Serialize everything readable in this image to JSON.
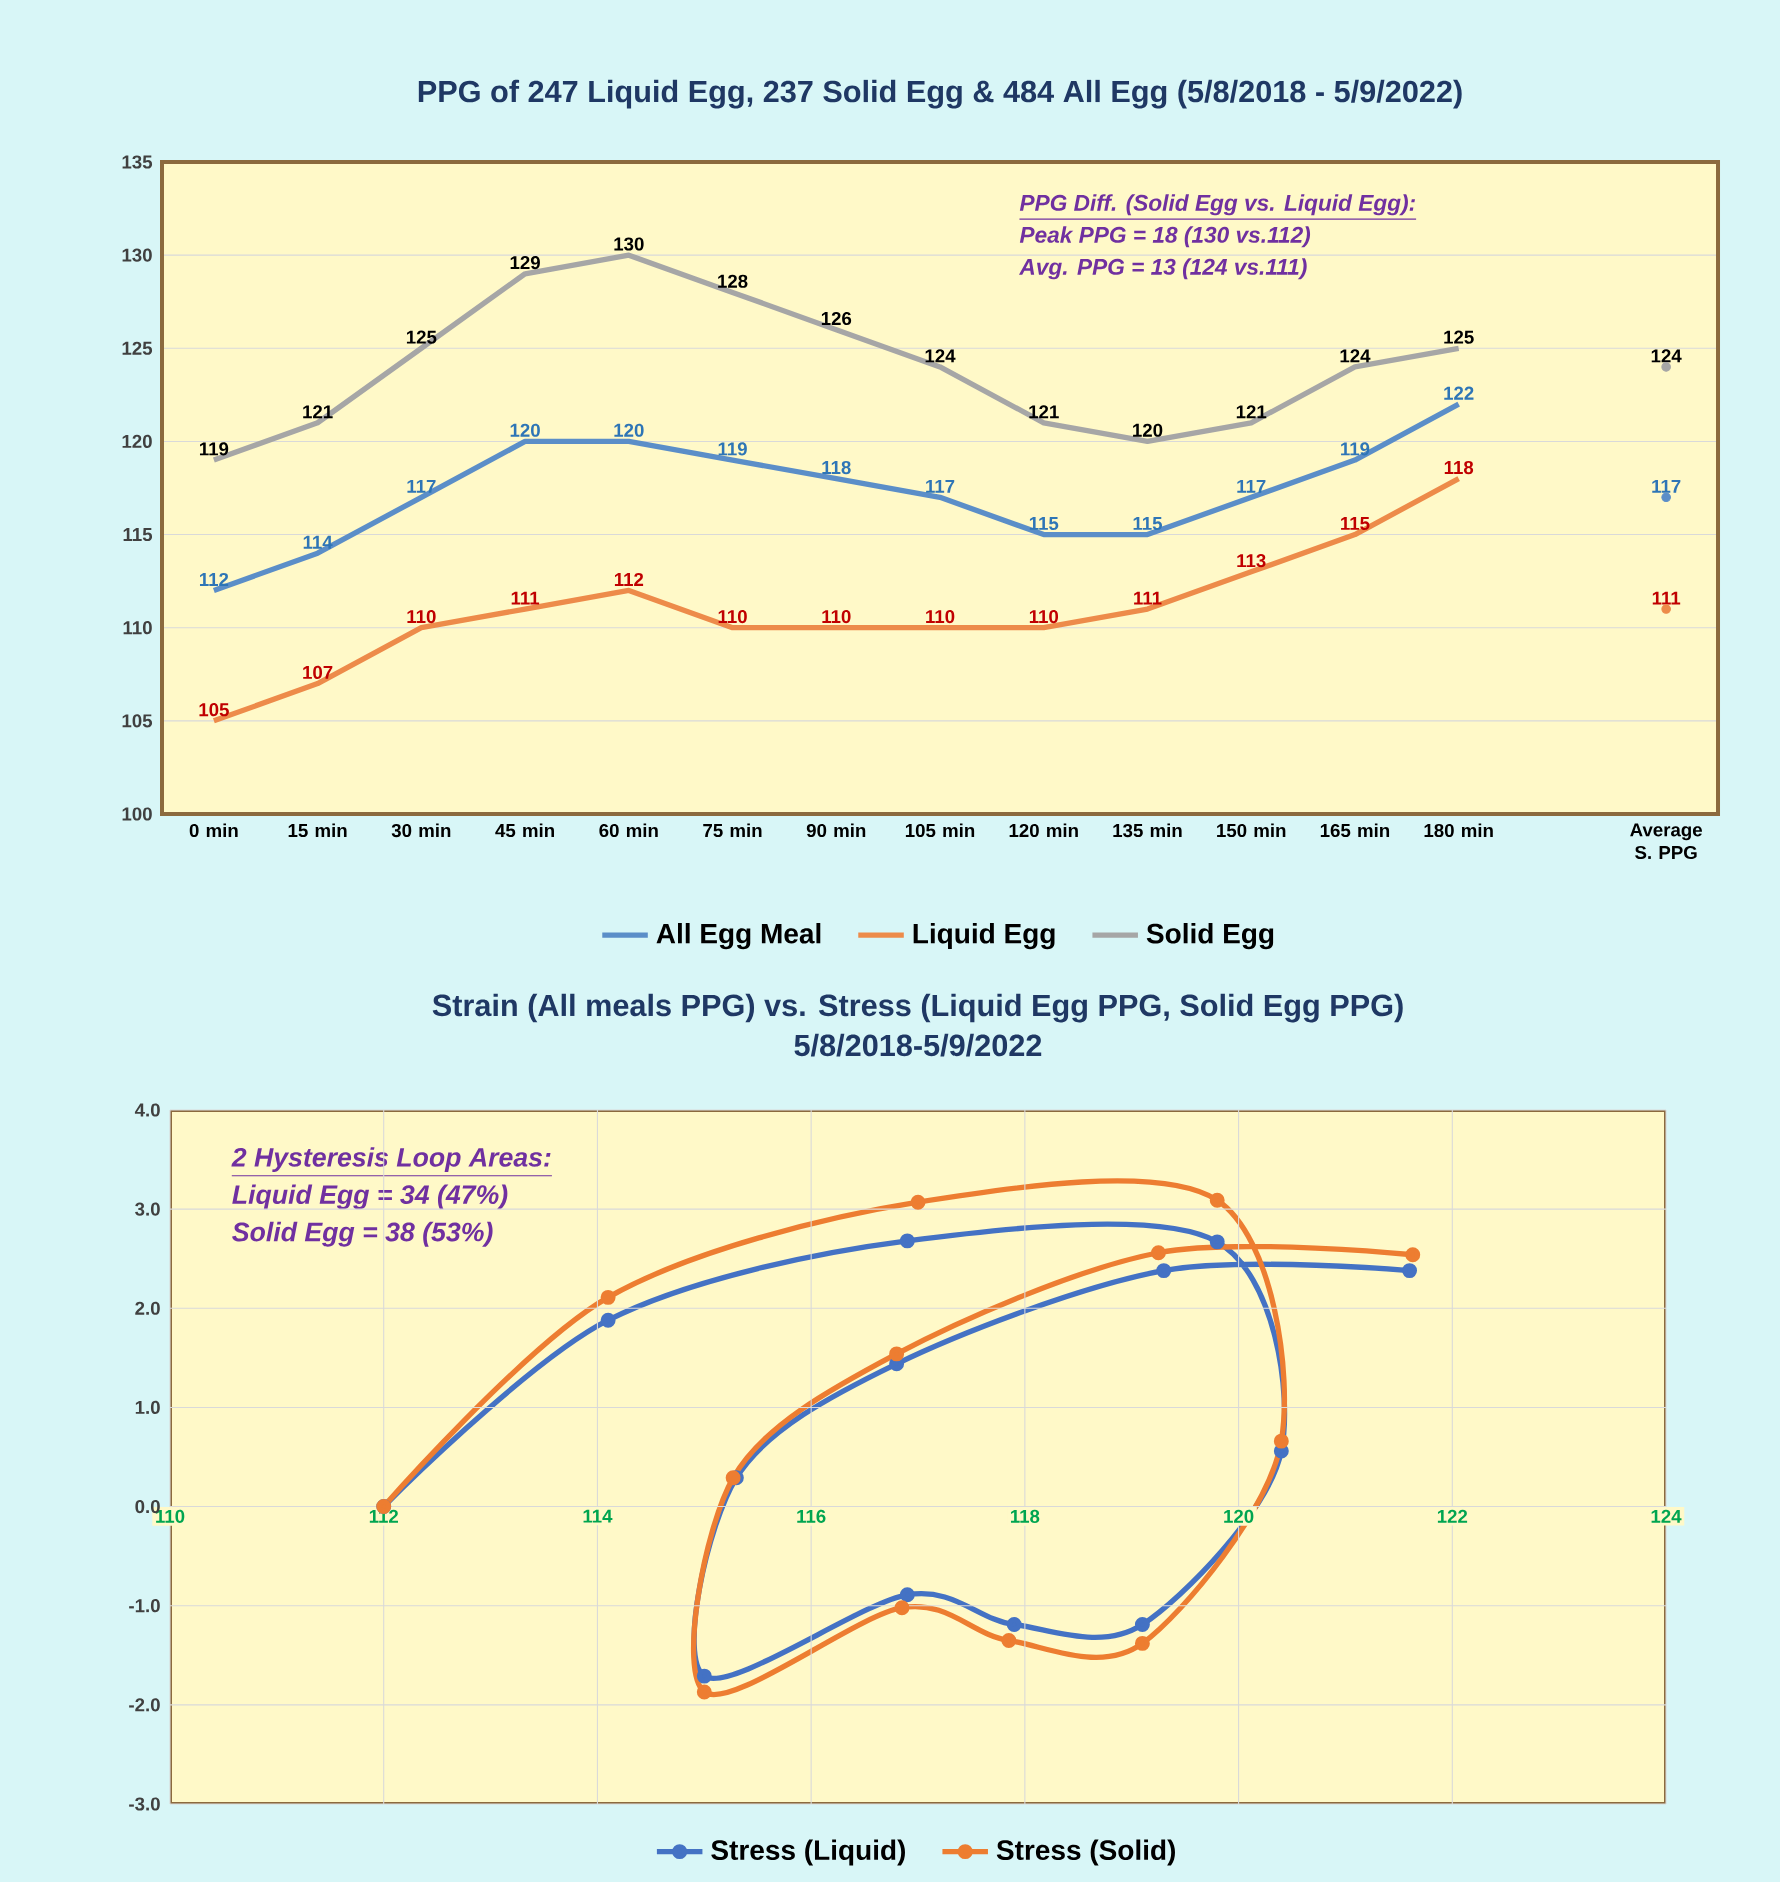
{
  "chart_data": [
    {
      "type": "line",
      "title": "PPG of 247 Liquid Egg,  237 Solid Egg & 484 All Egg (5/8/2018 - 5/9/2022)",
      "categories": [
        "0 min",
        "15 min",
        "30 min",
        "45 min",
        "60 min",
        "75 min",
        "90 min",
        "105 min",
        "120 min",
        "135 min",
        "150 min",
        "165 min",
        "180 min",
        null,
        "Average S. PPG"
      ],
      "series": [
        {
          "name": "All Egg Meal",
          "color": "#5b8ec8",
          "values": [
            112,
            114,
            117,
            120,
            120,
            119,
            118,
            117,
            115,
            115,
            117,
            119,
            122,
            null,
            117
          ]
        },
        {
          "name": "Liquid Egg",
          "color": "#ed8b4a",
          "values": [
            105,
            107,
            110,
            111,
            112,
            110,
            110,
            110,
            110,
            111,
            113,
            115,
            118,
            null,
            111
          ]
        },
        {
          "name": "Solid Egg",
          "color": "#a6a6a6",
          "values": [
            119,
            121,
            125,
            129,
            130,
            128,
            126,
            124,
            121,
            120,
            121,
            124,
            125,
            null,
            124
          ]
        }
      ],
      "ylim": [
        100,
        135
      ],
      "yticks": [
        100,
        105,
        110,
        115,
        120,
        125,
        130,
        135
      ],
      "grid": "y",
      "legend": "bottom",
      "marker": "none",
      "data_labels": true,
      "annotations": [
        "PPG Diff. (Solid Egg vs. Liquid Egg):",
        "Peak PPG = 18 (130 vs.112)",
        "Avg. PPG = 13 (124 vs.111)"
      ]
    },
    {
      "type": "line",
      "title": "Strain (All meals PPG) vs. Stress (Liquid Egg PPG, Solid Egg PPG)",
      "subtitle": "5/8/2018-5/9/2022",
      "series": [
        {
          "name": "Stress (Liquid)",
          "color": "#4472c4",
          "x": [
            112.0,
            114.1,
            116.9,
            119.8,
            120.4,
            119.1,
            117.9,
            116.9,
            115.0,
            115.3,
            116.8,
            119.3,
            121.6
          ],
          "values": [
            0.0,
            1.88,
            2.68,
            2.67,
            0.56,
            -1.19,
            -1.19,
            -0.89,
            -1.71,
            0.29,
            1.44,
            2.38,
            2.38
          ]
        },
        {
          "name": "Stress (Solid)",
          "color": "#ed7d31",
          "x": [
            112.0,
            114.1,
            117.0,
            119.8,
            120.4,
            119.1,
            117.85,
            116.85,
            115.0,
            115.27,
            116.8,
            119.25,
            121.63
          ],
          "values": [
            0.0,
            2.11,
            3.07,
            3.09,
            0.66,
            -1.38,
            -1.35,
            -1.02,
            -1.87,
            0.29,
            1.54,
            2.56,
            2.54
          ]
        }
      ],
      "xlim": [
        110,
        124
      ],
      "xticks": [
        110,
        112,
        114,
        116,
        118,
        120,
        122,
        124
      ],
      "ylim": [
        -3,
        4
      ],
      "yticks": [
        {
          "value": -3,
          "label": "-3.0"
        },
        {
          "value": -2,
          "label": "-2.0"
        },
        {
          "value": -1,
          "label": "-1.0"
        },
        {
          "value": 0,
          "label": "0.0"
        },
        {
          "value": 1,
          "label": "1.0"
        },
        {
          "value": 2,
          "label": "2.0"
        },
        {
          "value": 3,
          "label": "3.0"
        },
        {
          "value": 4,
          "label": "4.0"
        }
      ],
      "grid": true,
      "legend": "bottom",
      "marker": "circle",
      "annotations": [
        "2 Hysteresis Loop Areas:",
        "Liquid Egg = 34 (47%)",
        "Solid Egg =  38 (53%)"
      ]
    }
  ]
}
